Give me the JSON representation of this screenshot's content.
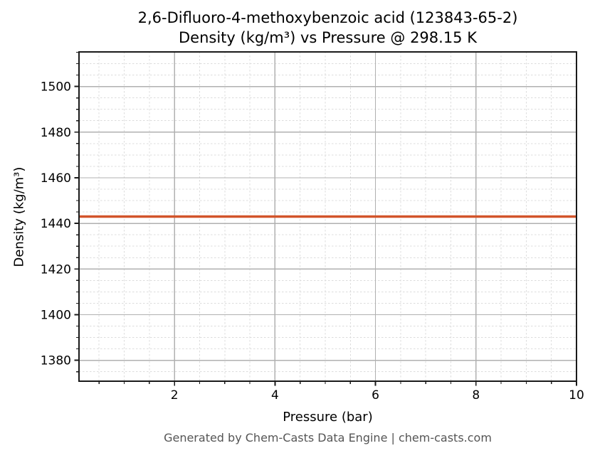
{
  "header": {
    "title_line1": "2,6-Difluoro-4-methoxybenzoic acid (123843-65-2)",
    "title_line2": "Density (kg/m³) vs Pressure @ 298.15 K"
  },
  "footer": {
    "text": "Generated by Chem-Casts Data Engine | chem-casts.com"
  },
  "colors": {
    "background": "#ffffff",
    "line": "#d2542a",
    "grid_major": "#b0b0b0",
    "grid_minor": "#dcdcdc",
    "spine": "#1a1a1a",
    "tick": "#1a1a1a",
    "text": "#000000",
    "footer_text": "#555555"
  },
  "chart_data": {
    "type": "line",
    "title": "2,6-Difluoro-4-methoxybenzoic acid (123843-65-2)",
    "subtitle": "Density (kg/m³) vs Pressure @ 298.15 K",
    "xlabel": "Pressure (bar)",
    "ylabel": "Density (kg/m³)",
    "xlim": [
      0.1,
      10
    ],
    "ylim": [
      1370.85,
      1515.15
    ],
    "x_tick_values": [
      2,
      4,
      6,
      8,
      10
    ],
    "x_tick_labels": [
      "2",
      "4",
      "6",
      "8",
      "10"
    ],
    "x_minor_step": 0.5,
    "y_tick_values": [
      1380,
      1400,
      1420,
      1440,
      1460,
      1480,
      1500
    ],
    "y_tick_labels": [
      "1380",
      "1400",
      "1420",
      "1440",
      "1460",
      "1480",
      "1500"
    ],
    "y_minor_step": 5,
    "grid": {
      "major": true,
      "minor": true
    },
    "legend": null,
    "series": [
      {
        "x": [
          0.1,
          1,
          2,
          3,
          4,
          5,
          6,
          7,
          8,
          9,
          10
        ],
        "y": [
          1443,
          1443,
          1443,
          1443,
          1443,
          1443,
          1443,
          1443,
          1443,
          1443,
          1443
        ],
        "color": "#d2542a",
        "line_width": 3.5
      }
    ],
    "constant_value": 1443
  }
}
